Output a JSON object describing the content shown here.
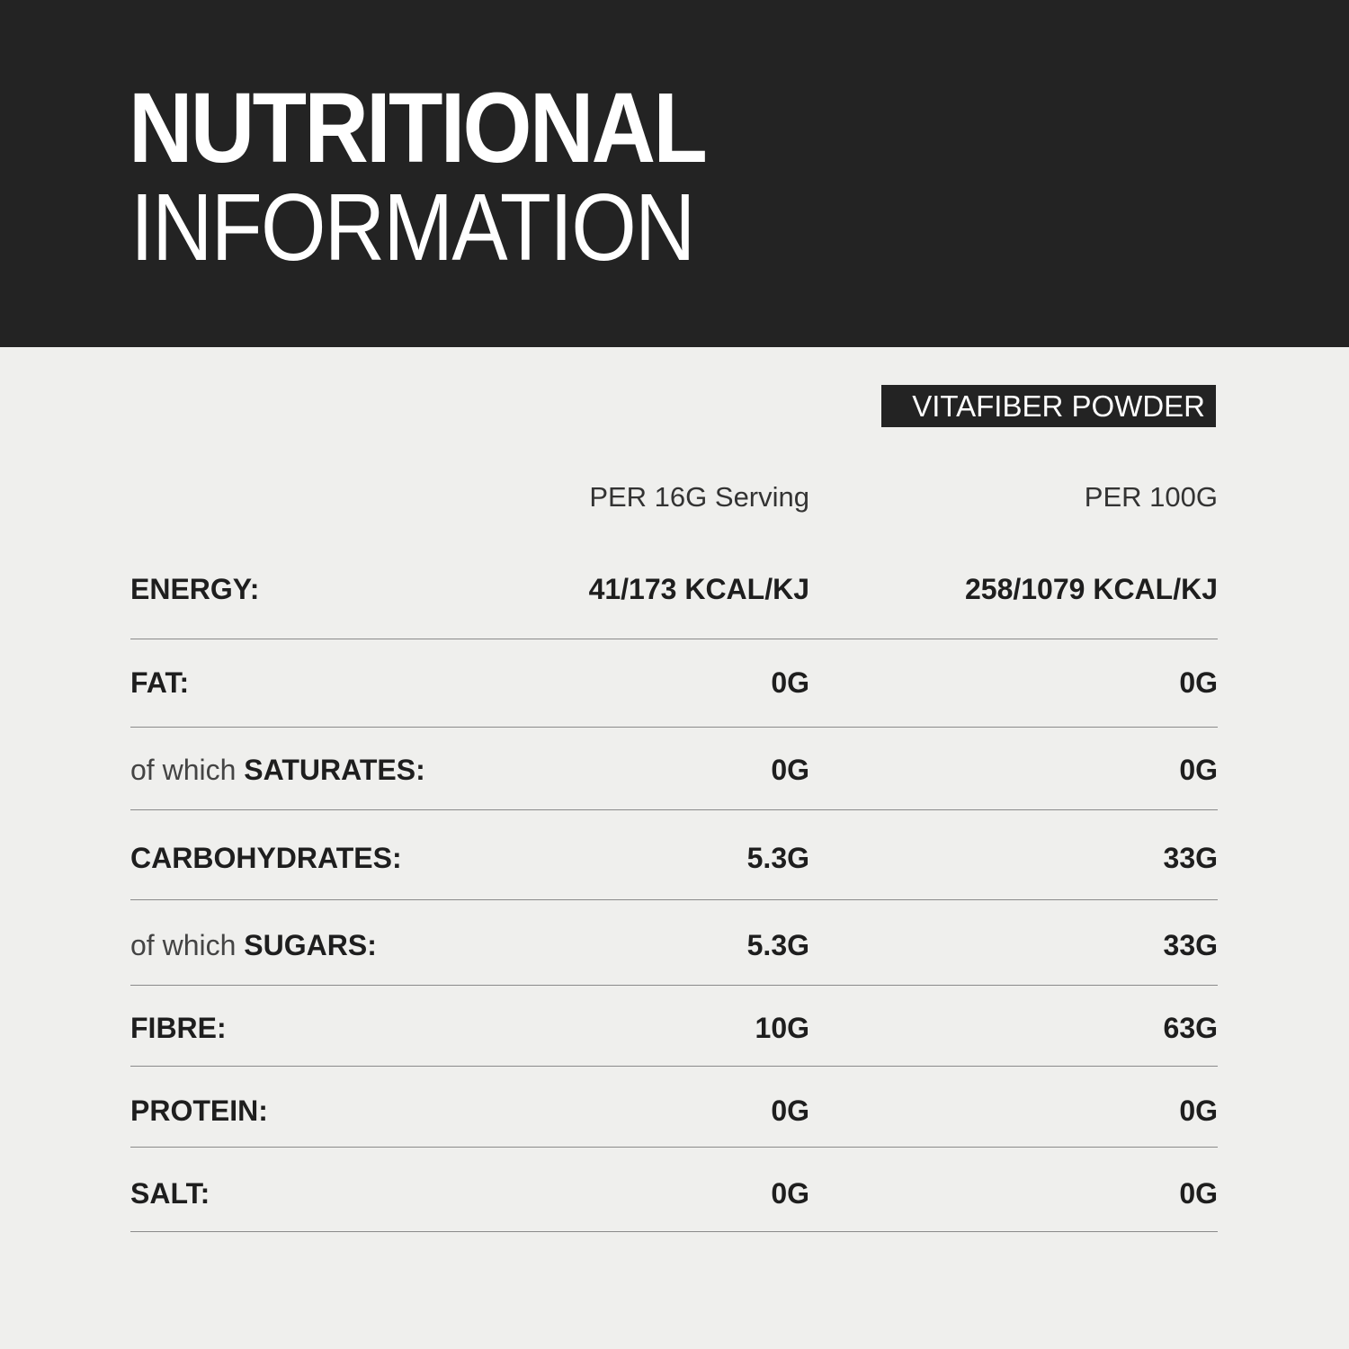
{
  "header": {
    "title_bold": "NUTRITIONAL",
    "title_light": "INFORMATION"
  },
  "product": "VITAFIBER POWDER",
  "columns": {
    "per_serving": "PER 16G Serving",
    "per_100g": "PER 100G"
  },
  "rows": [
    {
      "prefix": "",
      "label": "ENERGY:",
      "per_serving": "41/173 KCAL/KJ",
      "per_100g": "258/1079 KCAL/KJ"
    },
    {
      "prefix": "",
      "label": "FAT:",
      "per_serving": "0G",
      "per_100g": "0G"
    },
    {
      "prefix": "of which ",
      "label": "SATURATES:",
      "per_serving": "0G",
      "per_100g": "0G"
    },
    {
      "prefix": "",
      "label": "CARBOHYDRATES:",
      "per_serving": "5.3G",
      "per_100g": "33G"
    },
    {
      "prefix": "of which ",
      "label": "SUGARS:",
      "per_serving": "5.3G",
      "per_100g": "33G"
    },
    {
      "prefix": "",
      "label": "FIBRE:",
      "per_serving": "10G",
      "per_100g": "63G"
    },
    {
      "prefix": "",
      "label": "PROTEIN:",
      "per_serving": "0G",
      "per_100g": "0G"
    },
    {
      "prefix": "",
      "label": "SALT:",
      "per_serving": "0G",
      "per_100g": "0G"
    }
  ],
  "colors": {
    "header_bg": "#232323",
    "page_bg": "#efefed",
    "text": "#1e1e1e"
  }
}
